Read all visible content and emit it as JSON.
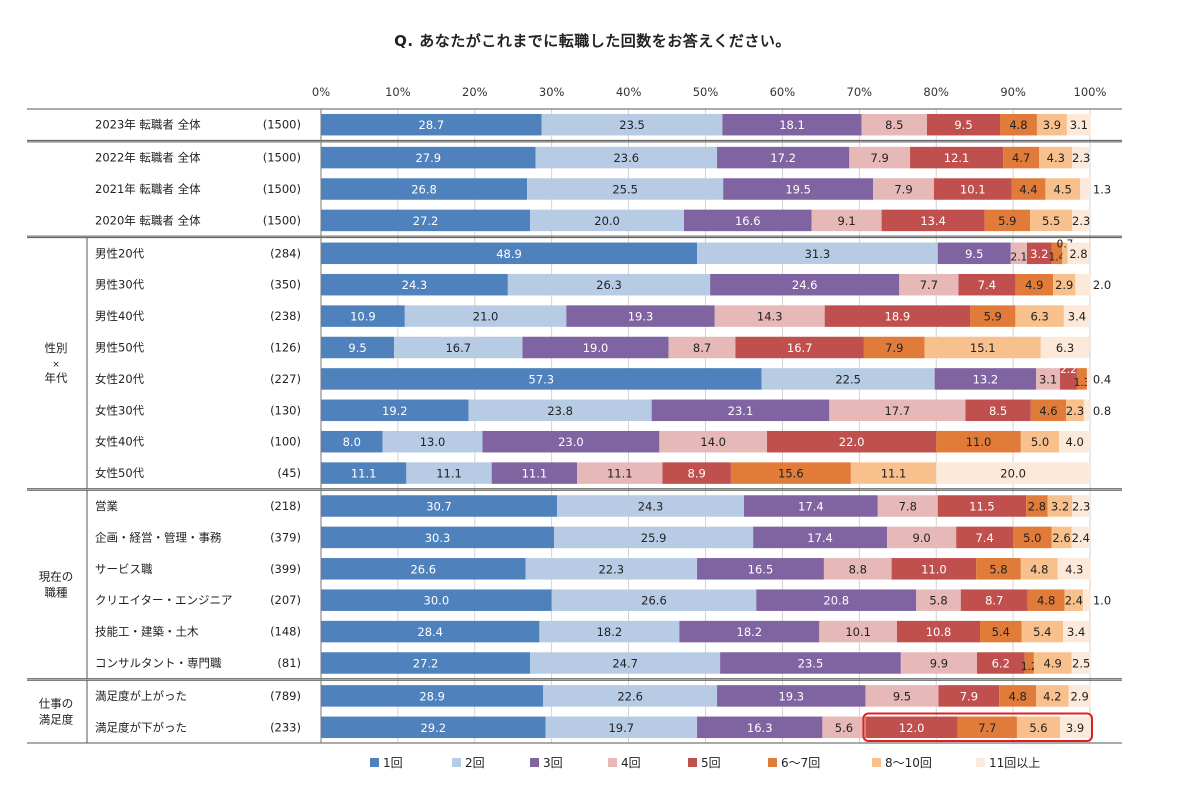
{
  "title": "Q.  あなたがこれまでに転職した回数をお答えください。",
  "chart_data": {
    "type": "stacked-bar-100",
    "title": "Q.  あなたがこれまでに転職した回数をお答えください。",
    "x_ticks": [
      "0%",
      "10%",
      "20%",
      "30%",
      "40%",
      "50%",
      "60%",
      "70%",
      "80%",
      "90%",
      "100%"
    ],
    "xlim": [
      0,
      100
    ],
    "series": [
      {
        "name": "1回",
        "color": "#4f81bd"
      },
      {
        "name": "2回",
        "color": "#b7cce4"
      },
      {
        "name": "3回",
        "color": "#8064a2"
      },
      {
        "name": "4回",
        "color": "#e6b8b7"
      },
      {
        "name": "5回",
        "color": "#c0504d"
      },
      {
        "name": "6〜7回",
        "color": "#e07b39"
      },
      {
        "name": "8〜10回",
        "color": "#f8c08c"
      },
      {
        "name": "11回以上",
        "color": "#fde9d9"
      }
    ],
    "groups": [
      {
        "label": "",
        "rows": [
          {
            "label": "2023年 転職者 全体",
            "n": "(1500)",
            "values": [
              28.7,
              23.5,
              18.1,
              8.5,
              9.5,
              4.8,
              3.9,
              3.1
            ]
          }
        ]
      },
      {
        "label": "",
        "rows": [
          {
            "label": "2022年 転職者 全体",
            "n": "(1500)",
            "values": [
              27.9,
              23.6,
              17.2,
              7.9,
              12.1,
              4.7,
              4.3,
              2.3
            ]
          },
          {
            "label": "2021年 転職者 全体",
            "n": "(1500)",
            "values": [
              26.8,
              25.5,
              19.5,
              7.9,
              10.1,
              4.4,
              4.5,
              1.3
            ]
          },
          {
            "label": "2020年 転職者 全体",
            "n": "(1500)",
            "values": [
              27.2,
              20.0,
              16.6,
              9.1,
              13.4,
              5.9,
              5.5,
              2.3
            ]
          }
        ]
      },
      {
        "label": "性別\n×\n年代",
        "rows": [
          {
            "label": "男性20代",
            "n": "(284)",
            "values": [
              48.9,
              31.3,
              9.5,
              2.1,
              3.2,
              1.4,
              0.7,
              2.8
            ]
          },
          {
            "label": "男性30代",
            "n": "(350)",
            "values": [
              24.3,
              26.3,
              24.6,
              7.7,
              7.4,
              4.9,
              2.9,
              2.0
            ]
          },
          {
            "label": "男性40代",
            "n": "(238)",
            "values": [
              10.9,
              21.0,
              19.3,
              14.3,
              18.9,
              5.9,
              6.3,
              3.4
            ]
          },
          {
            "label": "男性50代",
            "n": "(126)",
            "values": [
              9.5,
              16.7,
              19.0,
              8.7,
              16.7,
              7.9,
              15.1,
              6.3
            ]
          },
          {
            "label": "女性20代",
            "n": "(227)",
            "values": [
              57.3,
              22.5,
              13.2,
              3.1,
              2.2,
              1.3,
              0.0,
              0.4
            ]
          },
          {
            "label": "女性30代",
            "n": "(130)",
            "values": [
              19.2,
              23.8,
              23.1,
              17.7,
              8.5,
              4.6,
              2.3,
              0.8
            ]
          },
          {
            "label": "女性40代",
            "n": "(100)",
            "values": [
              8.0,
              13.0,
              23.0,
              14.0,
              22.0,
              11.0,
              5.0,
              4.0
            ]
          },
          {
            "label": "女性50代",
            "n": "(45)",
            "values": [
              11.1,
              11.1,
              11.1,
              11.1,
              8.9,
              15.6,
              11.1,
              20.0
            ]
          }
        ]
      },
      {
        "label": "現在の\n職種",
        "rows": [
          {
            "label": "営業",
            "n": "(218)",
            "values": [
              30.7,
              24.3,
              17.4,
              7.8,
              11.5,
              2.8,
              3.2,
              2.3
            ]
          },
          {
            "label": "企画・経営・管理・事務",
            "n": "(379)",
            "values": [
              30.3,
              25.9,
              17.4,
              9.0,
              7.4,
              5.0,
              2.6,
              2.4
            ]
          },
          {
            "label": "サービス職",
            "n": "(399)",
            "values": [
              26.6,
              22.3,
              16.5,
              8.8,
              11.0,
              5.8,
              4.8,
              4.3
            ]
          },
          {
            "label": "クリエイター・エンジニア",
            "n": "(207)",
            "values": [
              30.0,
              26.6,
              20.8,
              5.8,
              8.7,
              4.8,
              2.4,
              1.0
            ]
          },
          {
            "label": "技能工・建築・土木",
            "n": "(148)",
            "values": [
              28.4,
              18.2,
              18.2,
              10.1,
              10.8,
              5.4,
              5.4,
              3.4
            ]
          },
          {
            "label": "コンサルタント・専門職",
            "n": "(81)",
            "values": [
              27.2,
              24.7,
              23.5,
              9.9,
              6.2,
              1.2,
              4.9,
              2.5
            ]
          }
        ]
      },
      {
        "label": "仕事の\n満足度",
        "rows": [
          {
            "label": "満足度が上がった",
            "n": "(789)",
            "values": [
              28.9,
              22.6,
              19.3,
              9.5,
              7.9,
              4.8,
              4.2,
              2.9
            ]
          },
          {
            "label": "満足度が下がった",
            "n": "(233)",
            "values": [
              29.2,
              19.7,
              16.3,
              5.6,
              12.0,
              7.7,
              5.6,
              3.9
            ]
          }
        ]
      }
    ],
    "highlight": {
      "group": 4,
      "row": 1,
      "from_series": 4,
      "to_series": 7
    }
  }
}
